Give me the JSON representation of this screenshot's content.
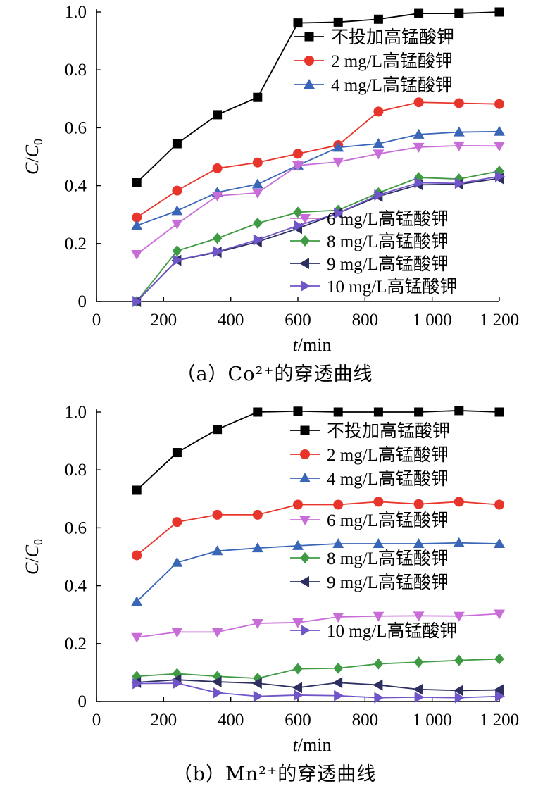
{
  "chart_data": [
    {
      "type": "line",
      "caption": "（a）Co²⁺的穿透曲线",
      "xlabel": "t/min",
      "ylabel": "C/C0",
      "xlim": [
        0,
        1200
      ],
      "ylim": [
        0,
        1.0
      ],
      "xticks": [
        0,
        200,
        400,
        600,
        800,
        1000,
        1200
      ],
      "xtick_labels": [
        "0",
        "200",
        "400",
        "600",
        "800",
        "1 000",
        "1 200"
      ],
      "yticks": [
        0,
        0.2,
        0.4,
        0.6,
        0.8,
        1.0
      ],
      "ytick_labels": [
        "0",
        "0.2",
        "0.4",
        "0.6",
        "0.8",
        "1.0"
      ],
      "grid": false,
      "legend_placement": "split: top-right and bottom-right",
      "x": [
        120,
        240,
        360,
        480,
        600,
        720,
        840,
        960,
        1080,
        1200
      ],
      "series": [
        {
          "name": "不投加高锰酸钾",
          "color": "#000000",
          "marker": "square",
          "values": [
            0.41,
            0.545,
            0.645,
            0.705,
            0.962,
            0.965,
            0.975,
            0.995,
            0.995,
            1.0
          ]
        },
        {
          "name": "2 mg/L高锰酸钾",
          "color": "#e8352b",
          "marker": "circle",
          "values": [
            0.29,
            0.383,
            0.46,
            0.48,
            0.51,
            0.54,
            0.656,
            0.688,
            0.685,
            0.682
          ]
        },
        {
          "name": "4 mg/L高锰酸钾",
          "color": "#3a66b7",
          "marker": "triangle-up",
          "values": [
            0.262,
            0.313,
            0.377,
            0.405,
            0.47,
            0.532,
            0.545,
            0.577,
            0.585,
            0.587
          ]
        },
        {
          "name": "6 mg/L高锰酸钾",
          "color": "#c86dd7",
          "marker": "triangle-down",
          "values": [
            0.163,
            0.268,
            0.365,
            0.375,
            0.47,
            0.482,
            0.51,
            0.533,
            0.538,
            0.537
          ]
        },
        {
          "name": "8 mg/L高锰酸钾",
          "color": "#3f9b43",
          "marker": "diamond",
          "values": [
            0.0,
            0.175,
            0.218,
            0.27,
            0.308,
            0.315,
            0.375,
            0.428,
            0.423,
            0.45
          ]
        },
        {
          "name": "9 mg/L高锰酸钾",
          "color": "#2c2f5f",
          "marker": "triangle-left",
          "values": [
            0.0,
            0.142,
            0.17,
            0.206,
            0.252,
            0.305,
            0.363,
            0.403,
            0.405,
            0.425
          ]
        },
        {
          "name": "10 mg/L高锰酸钾",
          "color": "#6f55c8",
          "marker": "triangle-right",
          "values": [
            0.0,
            0.143,
            0.172,
            0.213,
            0.262,
            0.305,
            0.368,
            0.41,
            0.408,
            0.432
          ]
        }
      ]
    },
    {
      "type": "line",
      "caption": "（b）Mn²⁺的穿透曲线",
      "xlabel": "t/min",
      "ylabel": "C/C0",
      "xlim": [
        0,
        1200
      ],
      "ylim": [
        0,
        1.0
      ],
      "xticks": [
        0,
        200,
        400,
        600,
        800,
        1000,
        1200
      ],
      "xtick_labels": [
        "0",
        "200",
        "400",
        "600",
        "800",
        "1 000",
        "1 200"
      ],
      "yticks": [
        0,
        0.2,
        0.4,
        0.6,
        0.8,
        1.0
      ],
      "ytick_labels": [
        "0",
        "0.2",
        "0.4",
        "0.6",
        "0.8",
        "1.0"
      ],
      "grid": false,
      "legend_placement": "right, stacked",
      "x": [
        120,
        240,
        360,
        480,
        600,
        720,
        840,
        960,
        1080,
        1200
      ],
      "series": [
        {
          "name": "不投加高锰酸钾",
          "color": "#000000",
          "marker": "square",
          "values": [
            0.73,
            0.86,
            0.94,
            1.0,
            1.003,
            1.0,
            1.0,
            1.0,
            1.005,
            1.0
          ]
        },
        {
          "name": "2 mg/L高锰酸钾",
          "color": "#e8352b",
          "marker": "circle",
          "values": [
            0.505,
            0.62,
            0.645,
            0.645,
            0.68,
            0.68,
            0.69,
            0.682,
            0.69,
            0.68
          ]
        },
        {
          "name": "4 mg/L高锰酸钾",
          "color": "#3a66b7",
          "marker": "triangle-up",
          "values": [
            0.345,
            0.48,
            0.52,
            0.53,
            0.538,
            0.545,
            0.545,
            0.545,
            0.548,
            0.545
          ]
        },
        {
          "name": "6 mg/L高锰酸钾",
          "color": "#c86dd7",
          "marker": "triangle-down",
          "values": [
            0.222,
            0.24,
            0.24,
            0.27,
            0.273,
            0.292,
            0.295,
            0.296,
            0.295,
            0.303
          ]
        },
        {
          "name": "8 mg/L高锰酸钾",
          "color": "#3f9b43",
          "marker": "diamond",
          "values": [
            0.087,
            0.096,
            0.087,
            0.08,
            0.113,
            0.115,
            0.13,
            0.136,
            0.142,
            0.147
          ]
        },
        {
          "name": "9 mg/L高锰酸钾",
          "color": "#2c2f5f",
          "marker": "triangle-left",
          "values": [
            0.066,
            0.075,
            0.068,
            0.063,
            0.048,
            0.065,
            0.057,
            0.042,
            0.038,
            0.04
          ]
        },
        {
          "name": "10 mg/L高锰酸钾",
          "color": "#6f55c8",
          "marker": "triangle-right",
          "values": [
            0.062,
            0.063,
            0.03,
            0.018,
            0.022,
            0.02,
            0.013,
            0.015,
            0.013,
            0.018
          ]
        }
      ]
    }
  ]
}
